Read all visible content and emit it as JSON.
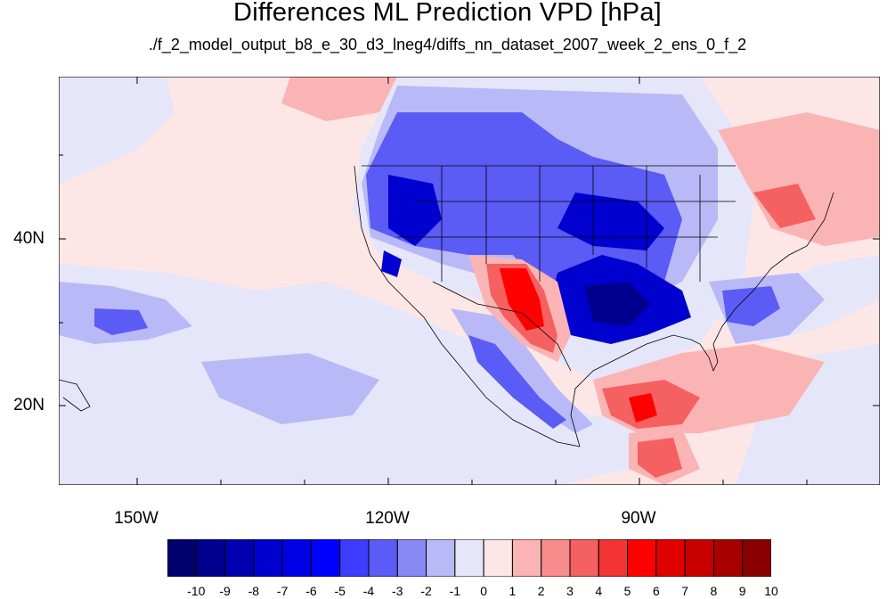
{
  "title": "Differences ML Prediction VPD [hPa]",
  "subtitle": "./f_2_model_output_b8_e_30_d3_lneg4/diffs_nn_dataset_2007_week_2_ens_0_f_2",
  "map": {
    "lon_range": [
      -160,
      -62
    ],
    "lat_range": [
      11,
      60
    ],
    "lon_labels": [
      {
        "lon": -150,
        "text": "150W"
      },
      {
        "lon": -120,
        "text": "120W"
      },
      {
        "lon": -90,
        "text": "90W"
      }
    ],
    "lat_labels": [
      {
        "lat": 40,
        "text": "40N"
      },
      {
        "lat": 20,
        "text": "20N"
      }
    ],
    "background_color": "#fde6e6"
  },
  "colorbar": {
    "labels": [
      "-10",
      "-9",
      "-8",
      "-7",
      "-6",
      "-5",
      "-4",
      "-3",
      "-2",
      "-1",
      "0",
      "1",
      "2",
      "3",
      "4",
      "5",
      "6",
      "7",
      "8",
      "9",
      "10"
    ],
    "colors": [
      "#00006e",
      "#00008f",
      "#0000b0",
      "#0000cf",
      "#0000e6",
      "#0000ff",
      "#3d3dff",
      "#5b5bf5",
      "#8989f5",
      "#b9b9f8",
      "#e6e6fa",
      "#fde6e6",
      "#fbb4b4",
      "#f88c8c",
      "#f56060",
      "#f23434",
      "#ff0000",
      "#e00000",
      "#c80000",
      "#a80000",
      "#8a0000"
    ]
  }
}
